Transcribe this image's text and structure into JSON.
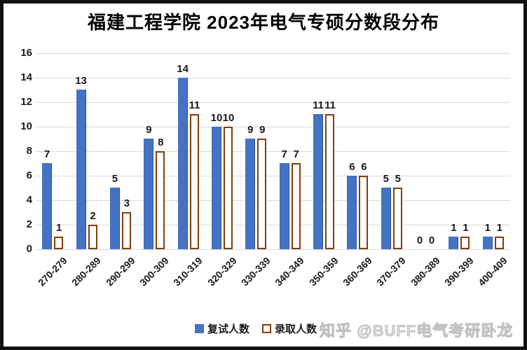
{
  "chart_data": {
    "type": "bar",
    "title": "福建工程学院 2023年电气专硕分数段分布",
    "categories": [
      "270-279",
      "280-289",
      "290-299",
      "300-309",
      "310-319",
      "320-329",
      "330-339",
      "340-349",
      "350-359",
      "360-369",
      "370-379",
      "380-389",
      "390-399",
      "400-409"
    ],
    "series": [
      {
        "name": "复试人数",
        "style": "solid",
        "color": "#4472C4",
        "values": [
          7,
          13,
          5,
          9,
          14,
          10,
          9,
          7,
          11,
          6,
          5,
          0,
          1,
          1
        ]
      },
      {
        "name": "录取人数",
        "style": "outline",
        "color": "#843C0C",
        "fill": "#FFFFFF",
        "values": [
          1,
          2,
          3,
          8,
          11,
          10,
          9,
          7,
          11,
          6,
          5,
          0,
          1,
          1
        ]
      }
    ],
    "xlabel": "",
    "ylabel": "",
    "ylim": [
      0,
      16
    ],
    "yticks": [
      0,
      2,
      4,
      6,
      8,
      10,
      12,
      14,
      16
    ],
    "grid": true,
    "gridline_color": "#d9d9d9",
    "data_labels": true,
    "legend_position": "bottom"
  },
  "watermark": {
    "text": "知乎 @BUFF电气考研卧龙",
    "color": "#d6d6d6"
  }
}
